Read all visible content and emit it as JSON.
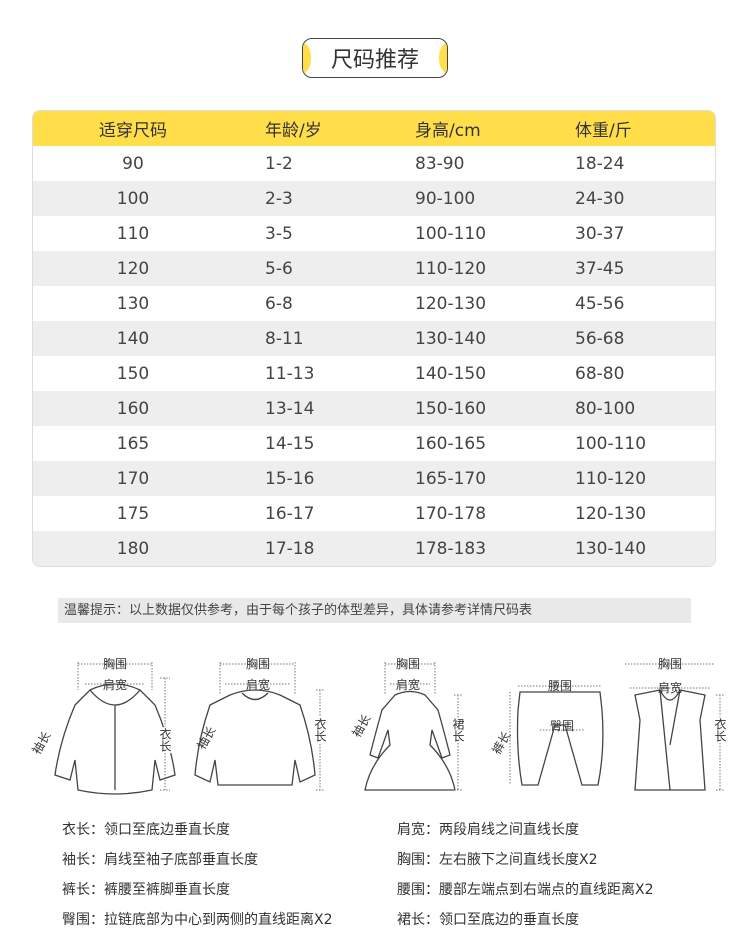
{
  "title": "尺码推荐",
  "accent": "#FFDE4A",
  "table": {
    "headers": [
      "适穿尺码",
      "年龄/岁",
      "身高/cm",
      "体重/斤"
    ],
    "rows": [
      [
        "90",
        "1-2",
        "83-90",
        "18-24"
      ],
      [
        "100",
        "2-3",
        "90-100",
        "24-30"
      ],
      [
        "110",
        "3-5",
        "100-110",
        "30-37"
      ],
      [
        "120",
        "5-6",
        "110-120",
        "37-45"
      ],
      [
        "130",
        "6-8",
        "120-130",
        "45-56"
      ],
      [
        "140",
        "8-11",
        "130-140",
        "56-68"
      ],
      [
        "150",
        "11-13",
        "140-150",
        "68-80"
      ],
      [
        "160",
        "13-14",
        "150-160",
        "80-100"
      ],
      [
        "165",
        "14-15",
        "160-165",
        "100-110"
      ],
      [
        "170",
        "15-16",
        "165-170",
        "110-120"
      ],
      [
        "175",
        "16-17",
        "170-178",
        "120-130"
      ],
      [
        "180",
        "17-18",
        "178-183",
        "130-140"
      ]
    ]
  },
  "tip": "温馨提示：以上数据仅供参考，由于每个孩子的体型差异，具体请参考详情尺码表",
  "labels": {
    "chest": "胸围",
    "shoulder": "肩宽",
    "sleeve": "袖长",
    "length_v": "衣长",
    "skirt_v": "裙长",
    "waist": "腰围",
    "hip": "臀围",
    "pants_v": "裤长"
  },
  "definitions": [
    "衣长：领口至底边垂直长度",
    "肩宽：两段肩线之间直线长度",
    "袖长：肩线至袖子底部垂直长度",
    "胸围：左右腋下之间直线长度X2",
    "裤长：裤腰至裤脚垂直长度",
    "腰围：腰部左端点到右端点的直线距离X2",
    "臀围：拉链底部为中心到两侧的直线距离X2",
    "裙长：领口至底边的垂直长度"
  ]
}
